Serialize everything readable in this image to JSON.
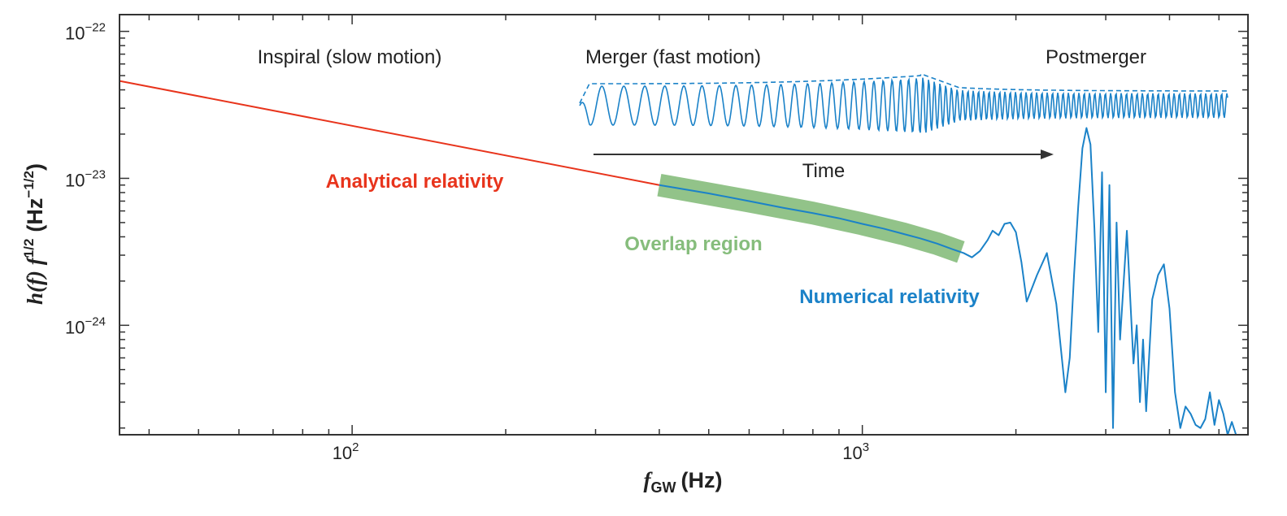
{
  "colors": {
    "analytical": "#e8341c",
    "numerical": "#1b82c8",
    "overlap": "#86bd7c",
    "axis": "#333333",
    "time_arrow": "#333333"
  },
  "chart_data": {
    "type": "line",
    "title": "",
    "xlabel": {
      "symbol": "f",
      "subscript": "GW",
      "unit": "(Hz)"
    },
    "ylabel": {
      "prefix": "h(f) f",
      "exponent": "1/2",
      "unit_open": "(Hz",
      "unit_exponent": "−1/2",
      "unit_close": ")"
    },
    "x_scale": "log",
    "y_scale": "log",
    "xlim": [
      35,
      5700
    ],
    "ylim": [
      1.8e-25,
      1.3e-22
    ],
    "x_ticks": [
      {
        "value": 100,
        "base": "10",
        "exponent": "2"
      },
      {
        "value": 1000,
        "base": "10",
        "exponent": "3"
      }
    ],
    "y_ticks": [
      {
        "value": 1e-22,
        "base": "10",
        "exponent": "−22"
      },
      {
        "value": 1e-23,
        "base": "10",
        "exponent": "−23"
      },
      {
        "value": 1e-24,
        "base": "10",
        "exponent": "−24"
      }
    ],
    "annotations": {
      "inspiral": "Inspiral (slow motion)",
      "merger": "Merger (fast motion)",
      "postmerger": "Postmerger",
      "time": "Time"
    },
    "series": [
      {
        "name": "Analytical relativity",
        "x": [
          35,
          400
        ],
        "y": [
          4.6e-23,
          9e-24
        ]
      },
      {
        "name": "Numerical relativity",
        "x": [
          400,
          500,
          600,
          700,
          800,
          900,
          1000,
          1100,
          1200,
          1300,
          1400,
          1500,
          1580,
          1640,
          1700,
          1760,
          1800,
          1850,
          1900,
          1950,
          2000,
          2050,
          2100,
          2200,
          2300,
          2400,
          2500,
          2550,
          2600,
          2650,
          2700,
          2750,
          2800,
          2850,
          2900,
          2950,
          3000,
          3050,
          3100,
          3150,
          3200,
          3300,
          3400,
          3450,
          3500,
          3550,
          3600,
          3700,
          3800,
          3900,
          4000,
          4100,
          4200,
          4300,
          4400,
          4500,
          4600,
          4700,
          4800,
          4900,
          5000,
          5100,
          5200,
          5300,
          5400
        ],
        "y": [
          9e-24,
          7.9e-24,
          7e-24,
          6.3e-24,
          5.8e-24,
          5.35e-24,
          4.9e-24,
          4.55e-24,
          4.2e-24,
          3.9e-24,
          3.6e-24,
          3.3e-24,
          3.1e-24,
          2.9e-24,
          3.2e-24,
          3.8e-24,
          4.4e-24,
          4.1e-24,
          4.9e-24,
          5e-24,
          4.3e-24,
          2.7e-24,
          1.45e-24,
          2.2e-24,
          3.1e-24,
          1.4e-24,
          3.5e-25,
          6e-25,
          2.2e-24,
          6.5e-24,
          1.6e-23,
          2.2e-23,
          1.7e-23,
          4.6e-24,
          9e-25,
          1.1e-23,
          3.5e-25,
          9e-24,
          2e-25,
          5e-24,
          8e-25,
          4.4e-24,
          5.5e-25,
          1e-24,
          3e-25,
          8e-25,
          2.6e-25,
          1.5e-24,
          2.2e-24,
          2.6e-24,
          1.3e-24,
          3.5e-25,
          2e-25,
          2.8e-25,
          2.5e-25,
          2.1e-25,
          2e-25,
          2.3e-25,
          3.5e-25,
          2.1e-25,
          3.1e-25,
          2.5e-25,
          1.8e-25,
          2.2e-25,
          1.6e-25
        ]
      },
      {
        "name": "Overlap region",
        "x": [
          400,
          600,
          800,
          1000,
          1200,
          1400,
          1560
        ],
        "y": [
          9e-24,
          7e-24,
          5.8e-24,
          4.9e-24,
          4.2e-24,
          3.6e-24,
          3.15e-24
        ]
      }
    ],
    "grid": false,
    "legend": "none"
  }
}
